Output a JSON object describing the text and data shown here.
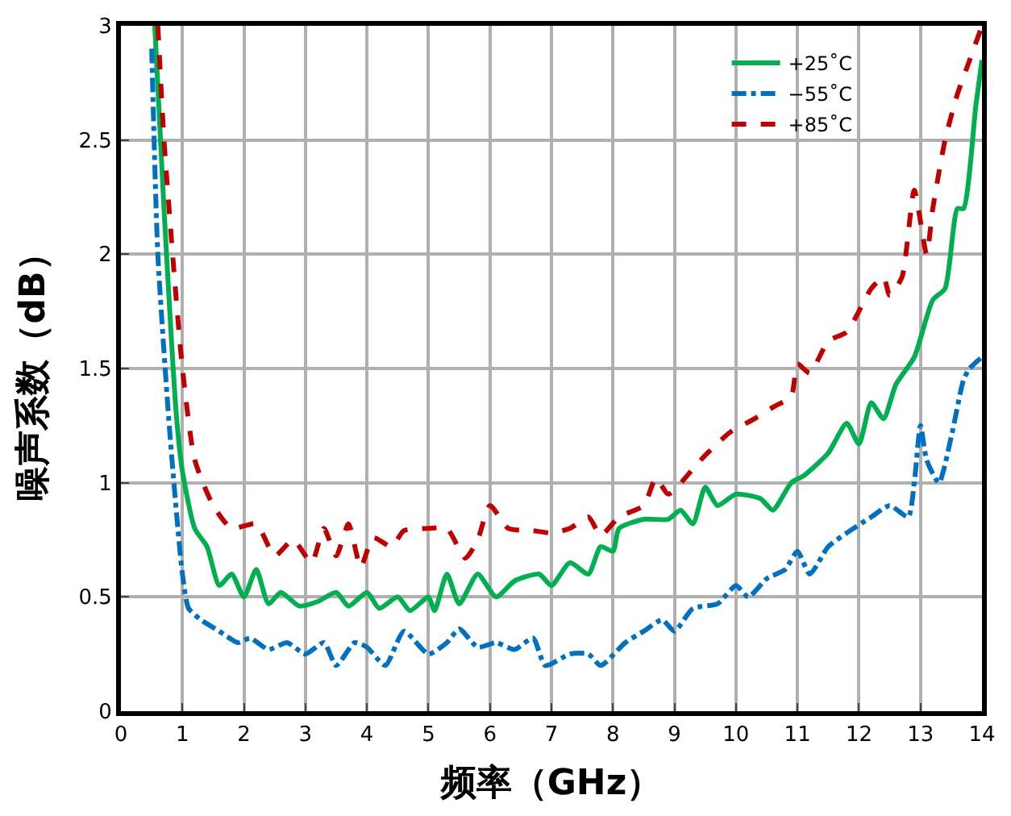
{
  "chart_data": {
    "type": "line",
    "xlabel": "频率（GHz）",
    "ylabel": "噪声系数（dB）",
    "xlim": [
      0,
      14
    ],
    "xticks": [
      0,
      1,
      2,
      3,
      4,
      5,
      6,
      7,
      8,
      9,
      10,
      11,
      12,
      13,
      14
    ],
    "ylim": [
      0,
      3
    ],
    "yticks": [
      0,
      0.5,
      1,
      1.5,
      2,
      2.5,
      3
    ],
    "grid": true,
    "legend": "top right",
    "marker": "none",
    "series": [
      {
        "name": "+25˚C",
        "color": "#00b050",
        "line_style": "solid",
        "x": [
          0.55,
          0.7,
          0.9,
          1.0,
          1.2,
          1.4,
          1.6,
          1.8,
          2.0,
          2.2,
          2.4,
          2.6,
          2.9,
          3.2,
          3.5,
          3.7,
          4.0,
          4.2,
          4.5,
          4.7,
          5.0,
          5.1,
          5.3,
          5.5,
          5.8,
          6.1,
          6.4,
          6.8,
          7.0,
          7.3,
          7.6,
          7.8,
          8.0,
          8.1,
          8.5,
          8.9,
          9.1,
          9.3,
          9.5,
          9.7,
          10.0,
          10.4,
          10.6,
          10.9,
          11.1,
          11.5,
          11.8,
          12.0,
          12.2,
          12.4,
          12.6,
          12.9,
          13.2,
          13.4,
          13.6,
          13.7,
          13.9,
          14.0
        ],
        "values": [
          3.0,
          2.2,
          1.3,
          1.05,
          0.8,
          0.72,
          0.55,
          0.6,
          0.5,
          0.62,
          0.47,
          0.52,
          0.46,
          0.48,
          0.52,
          0.46,
          0.52,
          0.45,
          0.5,
          0.44,
          0.5,
          0.44,
          0.6,
          0.47,
          0.6,
          0.5,
          0.57,
          0.6,
          0.55,
          0.65,
          0.6,
          0.72,
          0.7,
          0.8,
          0.84,
          0.84,
          0.88,
          0.82,
          0.98,
          0.9,
          0.95,
          0.93,
          0.88,
          1.0,
          1.03,
          1.13,
          1.26,
          1.17,
          1.35,
          1.28,
          1.43,
          1.55,
          1.8,
          1.85,
          2.2,
          2.2,
          2.65,
          2.85
        ]
      },
      {
        "name": "−55˚C",
        "color": "#0070c0",
        "line_style": "dashdot",
        "x": [
          0.5,
          0.6,
          0.8,
          1.0,
          1.1,
          1.3,
          1.6,
          1.9,
          2.1,
          2.4,
          2.7,
          3.0,
          3.3,
          3.5,
          3.8,
          4.0,
          4.3,
          4.6,
          5.0,
          5.3,
          5.5,
          5.8,
          6.1,
          6.4,
          6.7,
          6.9,
          7.3,
          7.6,
          7.8,
          8.2,
          8.5,
          8.8,
          9.0,
          9.3,
          9.7,
          10.0,
          10.2,
          10.5,
          10.8,
          11.0,
          11.2,
          11.5,
          11.8,
          12.2,
          12.5,
          12.8,
          12.9,
          13.0,
          13.1,
          13.3,
          13.5,
          13.7,
          13.8,
          14.0
        ],
        "values": [
          2.9,
          2.0,
          1.2,
          0.6,
          0.45,
          0.4,
          0.35,
          0.3,
          0.32,
          0.27,
          0.3,
          0.25,
          0.3,
          0.2,
          0.3,
          0.28,
          0.2,
          0.35,
          0.25,
          0.3,
          0.36,
          0.28,
          0.3,
          0.27,
          0.32,
          0.2,
          0.25,
          0.25,
          0.2,
          0.3,
          0.35,
          0.4,
          0.35,
          0.45,
          0.47,
          0.55,
          0.5,
          0.58,
          0.62,
          0.7,
          0.6,
          0.72,
          0.78,
          0.85,
          0.9,
          0.85,
          1.0,
          1.25,
          1.1,
          1.0,
          1.2,
          1.45,
          1.5,
          1.55
        ]
      },
      {
        "name": "+85˚C",
        "color": "#c00000",
        "line_style": "dashed",
        "x": [
          0.6,
          0.7,
          0.9,
          1.0,
          1.2,
          1.5,
          1.8,
          2.2,
          2.5,
          2.8,
          3.1,
          3.3,
          3.5,
          3.7,
          3.9,
          4.1,
          4.4,
          4.6,
          5.0,
          5.3,
          5.6,
          5.8,
          6.0,
          6.3,
          6.7,
          7.0,
          7.3,
          7.6,
          7.8,
          8.1,
          8.5,
          8.7,
          8.9,
          9.3,
          9.5,
          9.9,
          10.3,
          10.6,
          10.9,
          11.0,
          11.2,
          11.5,
          11.8,
          12.2,
          12.4,
          12.5,
          12.7,
          12.9,
          13.1,
          13.2,
          13.4,
          13.6,
          13.8,
          14.0
        ],
        "values": [
          3.0,
          2.5,
          1.8,
          1.5,
          1.1,
          0.9,
          0.8,
          0.82,
          0.68,
          0.75,
          0.65,
          0.8,
          0.68,
          0.82,
          0.63,
          0.76,
          0.72,
          0.79,
          0.8,
          0.8,
          0.67,
          0.75,
          0.9,
          0.8,
          0.79,
          0.78,
          0.8,
          0.85,
          0.77,
          0.85,
          0.9,
          1.02,
          0.95,
          1.06,
          1.12,
          1.22,
          1.28,
          1.33,
          1.38,
          1.52,
          1.48,
          1.62,
          1.66,
          1.85,
          1.9,
          1.82,
          1.9,
          2.28,
          2.0,
          2.2,
          2.5,
          2.7,
          2.85,
          3.0
        ]
      }
    ]
  }
}
